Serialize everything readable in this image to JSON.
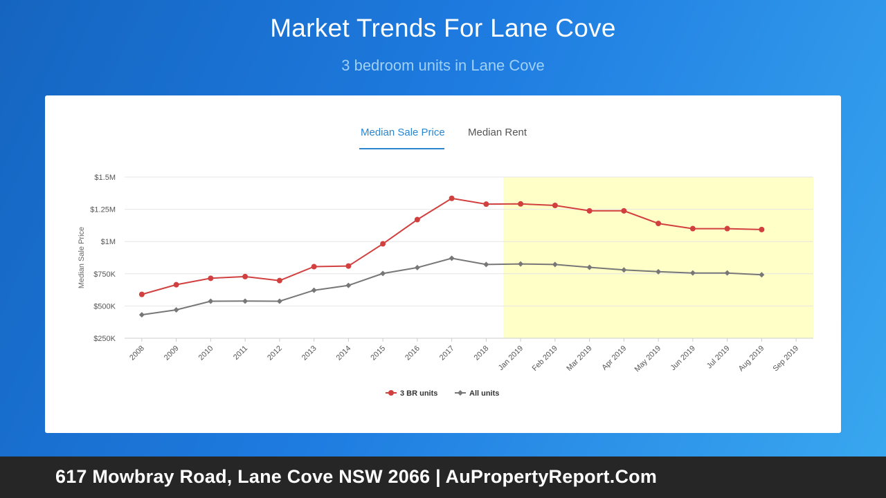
{
  "header": {
    "title": "Market Trends For Lane Cove",
    "subtitle": "3 bedroom units in Lane Cove"
  },
  "tabs": [
    {
      "label": "Median Sale Price",
      "active": true
    },
    {
      "label": "Median Rent",
      "active": false
    }
  ],
  "footer": {
    "text": "617 Mowbray Road, Lane Cove NSW 2066 | AuPropertyReport.Com"
  },
  "colors": {
    "series_3br": "#d23f3f",
    "series_all": "#777777",
    "highlight": "#ffffc8",
    "active_tab": "#2a86cf"
  },
  "chart_data": {
    "type": "line",
    "ylabel": "Median Sale Price",
    "xlabel": "",
    "categories": [
      "2008",
      "2009",
      "2010",
      "2011",
      "2012",
      "2013",
      "2014",
      "2015",
      "2016",
      "2017",
      "2018",
      "Jan 2019",
      "Feb 2019",
      "Mar 2019",
      "Apr 2019",
      "May 2019",
      "Jun 2019",
      "Jul 2019",
      "Aug 2019",
      "Sep 2019"
    ],
    "y_ticks": [
      {
        "value": 250000,
        "label": "$250K"
      },
      {
        "value": 500000,
        "label": "$500K"
      },
      {
        "value": 750000,
        "label": "$750K"
      },
      {
        "value": 1000000,
        "label": "$1M"
      },
      {
        "value": 1250000,
        "label": "$1.25M"
      },
      {
        "value": 1500000,
        "label": "$1.5M"
      }
    ],
    "ylim": [
      250000,
      1500000
    ],
    "grid": true,
    "legend_position": "bottom",
    "highlight_range": {
      "from": "Jan 2019",
      "to": "Sep 2019"
    },
    "series": [
      {
        "name": "3 BR units",
        "marker": "circle",
        "values": [
          590000,
          665000,
          715000,
          728000,
          697000,
          805000,
          810000,
          982000,
          1170000,
          1335000,
          1290000,
          1292000,
          1280000,
          1238000,
          1238000,
          1140000,
          1100000,
          1100000,
          1093000,
          null
        ]
      },
      {
        "name": "All units",
        "marker": "diamond",
        "values": [
          432000,
          470000,
          537000,
          538000,
          537000,
          622000,
          660000,
          752000,
          798000,
          870000,
          822000,
          826000,
          822000,
          800000,
          780000,
          766000,
          756000,
          756000,
          742000,
          null
        ]
      }
    ]
  }
}
